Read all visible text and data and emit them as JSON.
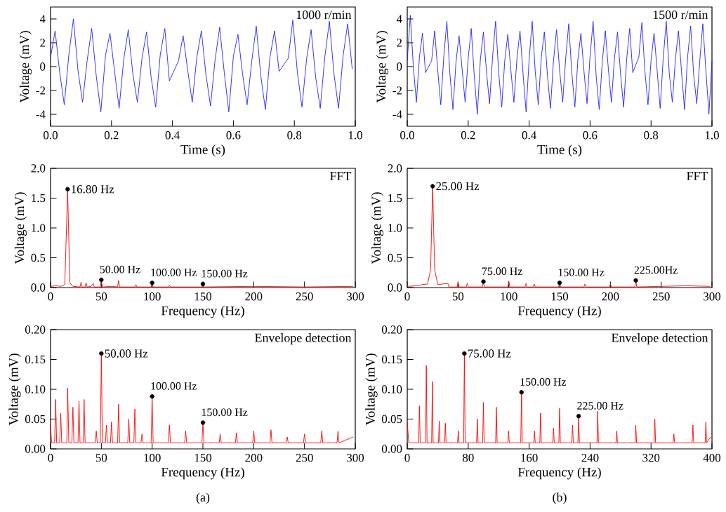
{
  "chart_data": [
    {
      "type": "line",
      "xlabel": "Time (s)",
      "ylabel": "Voltage (mV)",
      "annotations": [
        "1000 r/min"
      ],
      "xlim": [
        0,
        1
      ],
      "ylim": [
        -5,
        5
      ],
      "xticks": [
        {
          "value": 0,
          "label": "0.0"
        },
        {
          "value": 0.2,
          "label": "0.2"
        },
        {
          "value": 0.4,
          "label": "0.4"
        },
        {
          "value": 0.6,
          "label": "0.6"
        },
        {
          "value": 0.8,
          "label": "0.8"
        },
        {
          "value": 1,
          "label": "1.0"
        }
      ],
      "yticks": [
        -4,
        -2,
        0,
        2,
        4
      ],
      "series": [
        {
          "color": "#2020ff",
          "x": [
            0,
            0.015,
            0.03,
            0.045,
            0.06,
            0.075,
            0.09,
            0.105,
            0.12,
            0.135,
            0.15,
            0.165,
            0.18,
            0.195,
            0.21,
            0.225,
            0.24,
            0.255,
            0.27,
            0.285,
            0.3,
            0.315,
            0.33,
            0.345,
            0.36,
            0.375,
            0.39,
            0.405,
            0.42,
            0.435,
            0.45,
            0.465,
            0.48,
            0.495,
            0.51,
            0.525,
            0.54,
            0.555,
            0.57,
            0.585,
            0.6,
            0.615,
            0.63,
            0.645,
            0.66,
            0.675,
            0.69,
            0.705,
            0.72,
            0.735,
            0.75,
            0.765,
            0.78,
            0.795,
            0.81,
            0.825,
            0.84,
            0.855,
            0.87,
            0.885,
            0.9,
            0.915,
            0.93,
            0.945,
            0.96,
            0.975,
            0.99
          ],
          "values": [
            0.8,
            3.0,
            -0.5,
            -3.2,
            1.0,
            4.0,
            -0.3,
            -3.0,
            0.5,
            3.2,
            -0.8,
            -3.8,
            0.9,
            2.8,
            -0.4,
            -3.5,
            0.6,
            3.1,
            -0.6,
            -3.0,
            0.7,
            2.9,
            -0.9,
            -3.4,
            1.0,
            3.2,
            -1.2,
            null,
            0.5,
            2.6,
            -0.3,
            -3.0,
            0.8,
            3.0,
            -0.7,
            -3.3,
            0.6,
            3.3,
            -0.5,
            -3.8,
            0.9,
            2.7,
            -0.6,
            -3.2,
            0.4,
            3.4,
            -0.8,
            -3.6,
            0.8,
            3.0,
            -0.4,
            null,
            0.7,
            3.9,
            -0.5,
            -3.4,
            0.6,
            3.1,
            -0.9,
            -3.5,
            0.8,
            3.8,
            -0.6,
            -3.5,
            0.9,
            3.6,
            -0.2
          ]
        }
      ]
    },
    {
      "type": "line",
      "xlabel": "Time (s)",
      "ylabel": "Voltage (mV)",
      "annotations": [
        "1500 r/min"
      ],
      "xlim": [
        0,
        1
      ],
      "ylim": [
        -5,
        5
      ],
      "xticks": [
        {
          "value": 0,
          "label": "0.0"
        },
        {
          "value": 0.2,
          "label": "0.2"
        },
        {
          "value": 0.4,
          "label": "0.4"
        },
        {
          "value": 0.6,
          "label": "0.6"
        },
        {
          "value": 0.8,
          "label": "0.8"
        },
        {
          "value": 1,
          "label": "1.0"
        }
      ],
      "yticks": [
        -4,
        -2,
        0,
        2,
        4
      ],
      "series": [
        {
          "color": "#2020ff",
          "x": [
            0,
            0.01,
            0.02,
            0.03,
            0.04,
            0.05,
            0.06,
            0.07,
            0.08,
            0.09,
            0.1,
            0.11,
            0.12,
            0.13,
            0.14,
            0.15,
            0.16,
            0.17,
            0.18,
            0.19,
            0.2,
            0.21,
            0.22,
            0.23,
            0.24,
            0.25,
            0.26,
            0.27,
            0.28,
            0.29,
            0.3,
            0.31,
            0.32,
            0.33,
            0.34,
            0.35,
            0.36,
            0.37,
            0.38,
            0.39,
            0.4,
            0.41,
            0.42,
            0.43,
            0.44,
            0.45,
            0.46,
            0.47,
            0.48,
            0.49,
            0.5,
            0.51,
            0.52,
            0.53,
            0.54,
            0.55,
            0.56,
            0.57,
            0.58,
            0.59,
            0.6,
            0.61,
            0.62,
            0.63,
            0.64,
            0.65,
            0.66,
            0.67,
            0.68,
            0.69,
            0.7,
            0.71,
            0.72,
            0.73,
            0.74,
            0.75,
            0.76,
            0.77,
            0.78,
            0.79,
            0.8,
            0.81,
            0.82,
            0.83,
            0.84,
            0.85,
            0.86,
            0.87,
            0.88,
            0.89,
            0.9,
            0.91,
            0.92,
            0.93,
            0.94,
            0.95,
            0.96,
            0.97,
            0.98,
            0.99,
            1.0
          ],
          "values": [
            0.5,
            4.3,
            0.0,
            -3.0,
            0.8,
            2.8,
            -0.5,
            null,
            0.5,
            3.0,
            -0.3,
            -3.2,
            0.9,
            3.8,
            -0.6,
            -3.6,
            0.4,
            2.6,
            -0.2,
            -3.0,
            0.7,
            3.2,
            -0.8,
            -4.0,
            0.6,
            2.9,
            -0.4,
            -3.1,
            0.8,
            3.8,
            -0.5,
            -3.4,
            0.5,
            2.7,
            -0.3,
            -3.0,
            0.7,
            3.0,
            -0.6,
            -3.8,
            0.6,
            3.8,
            -0.4,
            -3.2,
            0.8,
            2.9,
            -0.7,
            -3.5,
            0.5,
            3.1,
            -0.3,
            -3.0,
            0.7,
            3.6,
            -0.5,
            -3.4,
            0.6,
            2.8,
            -0.4,
            -3.1,
            0.9,
            3.8,
            -0.8,
            -3.6,
            0.4,
            3.0,
            -0.2,
            -3.0,
            0.7,
            2.9,
            -0.6,
            -3.4,
            0.6,
            3.2,
            -0.5,
            null,
            0.8,
            3.7,
            -0.4,
            -3.2,
            0.5,
            2.8,
            -0.3,
            -3.5,
            0.7,
            3.8,
            -0.6,
            -3.0,
            0.6,
            3.0,
            -0.4,
            -3.6,
            0.8,
            3.4,
            -0.7,
            -3.1,
            0.5,
            3.6,
            -0.3,
            -4.0,
            0.5
          ]
        }
      ]
    },
    {
      "type": "line",
      "xlabel": "Frequency (Hz)",
      "ylabel": "Voltage (mV)",
      "xlim": [
        0,
        300
      ],
      "ylim": [
        0,
        2
      ],
      "xticks": [
        0,
        50,
        100,
        150,
        200,
        250,
        300
      ],
      "yticks": [
        {
          "value": 0,
          "label": "0.0"
        },
        {
          "value": 0.5,
          "label": "0.5"
        },
        {
          "value": 1,
          "label": "1.0"
        },
        {
          "value": 1.5,
          "label": "1.5"
        },
        {
          "value": 2,
          "label": "2.0"
        }
      ],
      "annotations": [
        "FFT",
        {
          "text": "16.80 Hz",
          "x": 16.8,
          "y": 1.65
        },
        {
          "text": "50.00 Hz",
          "x": 50,
          "y": 0.13
        },
        {
          "text": "100.00 Hz",
          "x": 100,
          "y": 0.08
        },
        {
          "text": "150.00 Hz",
          "x": 150,
          "y": 0.06
        }
      ],
      "series": [
        {
          "color": "#ff0000",
          "x": [
            0,
            5,
            10,
            14,
            16.8,
            19,
            22,
            29,
            30,
            31,
            34,
            35,
            36,
            40,
            42,
            43,
            49,
            50,
            51,
            60,
            66,
            67,
            68,
            83,
            84,
            85,
            99,
            100,
            101,
            116,
            117,
            118,
            149,
            150,
            151,
            200,
            250,
            298
          ],
          "values": [
            0.02,
            0.03,
            0.02,
            0.05,
            1.65,
            0.08,
            0.02,
            0.01,
            0.09,
            0.01,
            0.01,
            0.08,
            0.01,
            0.02,
            0.07,
            0.01,
            0.01,
            0.13,
            0.01,
            0.02,
            0.01,
            0.12,
            0.01,
            0.01,
            0.05,
            0.01,
            0.01,
            0.08,
            0.01,
            0.01,
            0.04,
            0.01,
            0.01,
            0.06,
            0.01,
            0.02,
            0.01,
            0.02
          ]
        },
        {
          "type": "scatter",
          "color": "#000000",
          "x": [
            16.8,
            50,
            100,
            150
          ],
          "values": [
            1.65,
            0.13,
            0.08,
            0.06
          ]
        }
      ]
    },
    {
      "type": "line",
      "xlabel": "Frequency (Hz)",
      "ylabel": "Voltage (mV)",
      "xlim": [
        0,
        300
      ],
      "ylim": [
        0,
        2
      ],
      "xticks": [
        0,
        50,
        100,
        150,
        200,
        250,
        300
      ],
      "yticks": [
        {
          "value": 0,
          "label": "0.0"
        },
        {
          "value": 0.5,
          "label": "0.5"
        },
        {
          "value": 1,
          "label": "1.0"
        },
        {
          "value": 1.5,
          "label": "1.5"
        },
        {
          "value": 2,
          "label": "2.0"
        }
      ],
      "annotations": [
        "FFT",
        {
          "text": "25.00 Hz",
          "x": 25,
          "y": 1.7
        },
        {
          "text": "75.00 Hz",
          "x": 75,
          "y": 0.1
        },
        {
          "text": "150.00 Hz",
          "x": 150,
          "y": 0.08
        },
        {
          "text": "225.00Hz",
          "x": 225,
          "y": 0.12
        }
      ],
      "series": [
        {
          "color": "#ff0000",
          "x": [
            0,
            10,
            15,
            20,
            23,
            25,
            27,
            30,
            40,
            41,
            49,
            50,
            51,
            58,
            59,
            60,
            74,
            75,
            76,
            99,
            100,
            101,
            116,
            117,
            118,
            124,
            125,
            126,
            149,
            150,
            151,
            174,
            175,
            176,
            199,
            200,
            201,
            224,
            225,
            226,
            250,
            275,
            298
          ],
          "values": [
            0.02,
            0.03,
            0.05,
            0.06,
            0.3,
            1.7,
            0.3,
            0.05,
            0.07,
            0.01,
            0.01,
            0.09,
            0.01,
            0.01,
            0.07,
            0.01,
            0.01,
            0.1,
            0.01,
            0.01,
            0.11,
            0.01,
            0.01,
            0.07,
            0.01,
            0.01,
            0.06,
            0.01,
            0.01,
            0.08,
            0.01,
            0.01,
            0.06,
            0.01,
            0.01,
            0.06,
            0.01,
            0.01,
            0.12,
            0.01,
            0.02,
            0.03,
            0.02
          ]
        },
        {
          "type": "scatter",
          "color": "#000000",
          "x": [
            25,
            75,
            150,
            225
          ],
          "values": [
            1.7,
            0.1,
            0.08,
            0.12
          ]
        }
      ]
    },
    {
      "type": "line",
      "xlabel": "Frequency (Hz)",
      "ylabel": "Voltage (mV)",
      "xlim": [
        0,
        300
      ],
      "ylim": [
        0,
        0.2
      ],
      "xticks": [
        0,
        50,
        100,
        150,
        200,
        250,
        300
      ],
      "yticks": [
        {
          "value": 0,
          "label": "0.00"
        },
        {
          "value": 0.05,
          "label": "0.05"
        },
        {
          "value": 0.1,
          "label": "0.10"
        },
        {
          "value": 0.15,
          "label": "0.15"
        },
        {
          "value": 0.2,
          "label": "0.20"
        }
      ],
      "annotations": [
        "Envelope detection",
        "(a)",
        {
          "text": "50.00 Hz",
          "x": 50,
          "y": 0.16
        },
        {
          "text": "100.00 Hz",
          "x": 100,
          "y": 0.088
        },
        {
          "text": "150.00 Hz",
          "x": 150,
          "y": 0.044
        }
      ],
      "series": [
        {
          "color": "#ff0000",
          "x": [
            0,
            1,
            4,
            5,
            6,
            9,
            10,
            11,
            16,
            16.8,
            18,
            21,
            22,
            23,
            27,
            28,
            29,
            32,
            33,
            34,
            44,
            45,
            46,
            49,
            50,
            51,
            54,
            55,
            56,
            59,
            60,
            61,
            66,
            67,
            68,
            76,
            77,
            78,
            82,
            83,
            84,
            89,
            90,
            91,
            99,
            100,
            101,
            116,
            117,
            118,
            132,
            133,
            134,
            149,
            150,
            151,
            166,
            167,
            168,
            182,
            183,
            184,
            199,
            200,
            201,
            216,
            217,
            218,
            232,
            233,
            234,
            249,
            250,
            251,
            266,
            267,
            268,
            282,
            283,
            284,
            298
          ],
          "values": [
            0.04,
            0.01,
            0.01,
            0.083,
            0.01,
            0.01,
            0.06,
            0.01,
            0.01,
            0.102,
            0.01,
            0.01,
            0.07,
            0.01,
            0.01,
            0.08,
            0.01,
            0.01,
            0.083,
            0.01,
            0.01,
            0.03,
            0.01,
            0.01,
            0.16,
            0.01,
            0.01,
            0.04,
            0.01,
            0.01,
            0.045,
            0.01,
            0.01,
            0.075,
            0.01,
            0.01,
            0.05,
            0.01,
            0.01,
            0.067,
            0.01,
            0.01,
            0.025,
            0.01,
            0.01,
            0.088,
            0.01,
            0.01,
            0.04,
            0.01,
            0.01,
            0.03,
            0.01,
            0.01,
            0.044,
            0.01,
            0.01,
            0.025,
            0.01,
            0.01,
            0.027,
            0.01,
            0.01,
            0.03,
            0.01,
            0.01,
            0.032,
            0.01,
            0.01,
            0.02,
            0.01,
            0.01,
            0.025,
            0.01,
            0.01,
            0.03,
            0.01,
            0.01,
            0.03,
            0.01,
            0.02
          ]
        },
        {
          "type": "scatter",
          "color": "#000000",
          "x": [
            50,
            100,
            150
          ],
          "values": [
            0.16,
            0.088,
            0.044
          ]
        }
      ]
    },
    {
      "type": "line",
      "xlabel": "Frequency (Hz)",
      "ylabel": "Voltage (mV)",
      "xlim": [
        0,
        400
      ],
      "ylim": [
        0,
        0.2
      ],
      "xticks": [
        0,
        80,
        160,
        240,
        320,
        400
      ],
      "yticks": [
        {
          "value": 0,
          "label": "0.00"
        },
        {
          "value": 0.05,
          "label": "0.05"
        },
        {
          "value": 0.1,
          "label": "0.10"
        },
        {
          "value": 0.15,
          "label": "0.15"
        },
        {
          "value": 0.2,
          "label": "0.20"
        }
      ],
      "annotations": [
        "Envelope detection",
        "(b)",
        {
          "text": "75.00 Hz",
          "x": 75,
          "y": 0.16
        },
        {
          "text": "150.00 Hz",
          "x": 150,
          "y": 0.095
        },
        {
          "text": "225.00 Hz",
          "x": 225,
          "y": 0.055
        }
      ],
      "series": [
        {
          "color": "#ff0000",
          "x": [
            0,
            2,
            15,
            16,
            17,
            24,
            25,
            26,
            32,
            33,
            34,
            41,
            42,
            43,
            49,
            50,
            51,
            66,
            67,
            68,
            74,
            75,
            76,
            91,
            92,
            93,
            99,
            100,
            101,
            116,
            117,
            118,
            132,
            133,
            134,
            149,
            150,
            151,
            166,
            167,
            168,
            174,
            175,
            176,
            191,
            192,
            193,
            199,
            200,
            201,
            216,
            217,
            218,
            224,
            225,
            226,
            249,
            250,
            251,
            274,
            275,
            276,
            299,
            300,
            301,
            324,
            325,
            326,
            349,
            350,
            351,
            374,
            375,
            376,
            391,
            392,
            393,
            398
          ],
          "values": [
            0.045,
            0.01,
            0.01,
            0.072,
            0.01,
            0.01,
            0.14,
            0.01,
            0.01,
            0.113,
            0.01,
            0.01,
            0.047,
            0.01,
            0.01,
            0.043,
            0.01,
            0.01,
            0.03,
            0.01,
            0.01,
            0.16,
            0.01,
            0.01,
            0.05,
            0.01,
            0.01,
            0.078,
            0.01,
            0.01,
            0.07,
            0.01,
            0.01,
            0.03,
            0.01,
            0.01,
            0.095,
            0.01,
            0.01,
            0.03,
            0.01,
            0.01,
            0.06,
            0.01,
            0.01,
            0.035,
            0.01,
            0.01,
            0.068,
            0.01,
            0.01,
            0.04,
            0.01,
            0.01,
            0.055,
            0.01,
            0.01,
            0.063,
            0.01,
            0.01,
            0.03,
            0.01,
            0.01,
            0.04,
            0.01,
            0.01,
            0.05,
            0.01,
            0.01,
            0.025,
            0.01,
            0.01,
            0.04,
            0.01,
            0.01,
            0.045,
            0.01,
            0.02
          ]
        },
        {
          "type": "scatter",
          "color": "#000000",
          "x": [
            75,
            150,
            225
          ],
          "values": [
            0.16,
            0.095,
            0.055
          ]
        }
      ]
    }
  ]
}
